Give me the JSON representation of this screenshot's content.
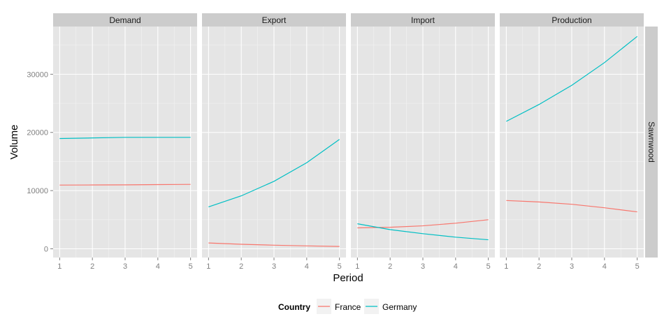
{
  "chart_data": {
    "type": "line",
    "facet_row_label": "Sawnwood",
    "xlabel": "Period",
    "ylabel": "Volume",
    "x": [
      1,
      2,
      3,
      4,
      5
    ],
    "x_ticks": [
      1,
      2,
      3,
      4,
      5
    ],
    "y_ticks": [
      0,
      10000,
      20000,
      30000
    ],
    "y_tick_labels": [
      "0",
      "10000",
      "20000",
      "30000"
    ],
    "ylim": [
      -1500,
      38200
    ],
    "xlim": [
      0.8,
      5.2
    ],
    "grid": true,
    "legend": {
      "title": "Country",
      "position": "bottom",
      "entries": [
        "France",
        "Germany"
      ]
    },
    "colors": {
      "France": "#F8766D",
      "Germany": "#00BFC4"
    },
    "panels": [
      {
        "label": "Demand",
        "series": [
          {
            "name": "France",
            "values": [
              10950,
              10970,
              10990,
              11030,
              11070
            ]
          },
          {
            "name": "Germany",
            "values": [
              18950,
              19050,
              19150,
              19150,
              19150
            ]
          }
        ]
      },
      {
        "label": "Export",
        "series": [
          {
            "name": "France",
            "values": [
              1000,
              780,
              620,
              500,
              400
            ]
          },
          {
            "name": "Germany",
            "values": [
              7200,
              9100,
              11600,
              14800,
              18800
            ]
          }
        ]
      },
      {
        "label": "Import",
        "series": [
          {
            "name": "France",
            "values": [
              3600,
              3700,
              3950,
              4400,
              5000
            ]
          },
          {
            "name": "Germany",
            "values": [
              4300,
              3300,
              2600,
              2000,
              1550
            ]
          }
        ]
      },
      {
        "label": "Production",
        "series": [
          {
            "name": "France",
            "values": [
              8300,
              8050,
              7650,
              7050,
              6350
            ]
          },
          {
            "name": "Germany",
            "values": [
              21900,
              24800,
              28100,
              32000,
              36500
            ]
          }
        ]
      }
    ]
  }
}
